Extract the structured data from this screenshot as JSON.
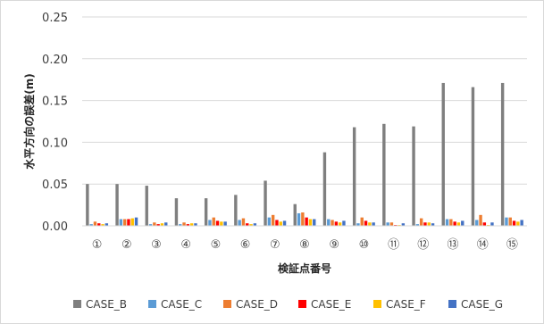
{
  "chart_data": {
    "type": "bar",
    "title": "",
    "xlabel": "検証点番号",
    "ylabel": "水平方向の誤差(m)",
    "ylim": [
      0,
      0.25
    ],
    "yticks": [
      "0.00",
      "0.05",
      "0.10",
      "0.15",
      "0.20",
      "0.25"
    ],
    "grid": true,
    "legend_position": "bottom",
    "categories": [
      "①",
      "②",
      "③",
      "④",
      "⑤",
      "⑥",
      "⑦",
      "⑧",
      "⑨",
      "⑩",
      "⑪",
      "⑫",
      "⑬",
      "⑭",
      "⑮"
    ],
    "series": [
      {
        "name": "CASE_B",
        "color": "#7f7f7f",
        "values": [
          0.05,
          0.05,
          0.048,
          0.033,
          0.033,
          0.037,
          0.054,
          0.026,
          0.088,
          0.118,
          0.122,
          0.119,
          0.171,
          0.166,
          0.171
        ]
      },
      {
        "name": "CASE_C",
        "color": "#5b9bd5",
        "values": [
          0.002,
          0.008,
          0.002,
          0.002,
          0.007,
          0.007,
          0.01,
          0.015,
          0.008,
          0.003,
          0.004,
          0.002,
          0.008,
          0.007,
          0.01
        ]
      },
      {
        "name": "CASE_D",
        "color": "#ed7d31",
        "values": [
          0.005,
          0.008,
          0.004,
          0.004,
          0.01,
          0.009,
          0.013,
          0.016,
          0.007,
          0.01,
          0.004,
          0.009,
          0.008,
          0.013,
          0.01
        ]
      },
      {
        "name": "CASE_E",
        "color": "#ff0000",
        "values": [
          0.003,
          0.008,
          0.002,
          0.002,
          0.006,
          0.003,
          0.007,
          0.01,
          0.005,
          0.006,
          0.001,
          0.004,
          0.005,
          0.004,
          0.006
        ]
      },
      {
        "name": "CASE_F",
        "color": "#ffc000",
        "values": [
          0.002,
          0.009,
          0.003,
          0.003,
          0.005,
          0.002,
          0.005,
          0.008,
          0.004,
          0.004,
          0.001,
          0.004,
          0.004,
          0.001,
          0.005
        ]
      },
      {
        "name": "CASE_G",
        "color": "#4472c4",
        "values": [
          0.003,
          0.01,
          0.004,
          0.003,
          0.005,
          0.003,
          0.006,
          0.008,
          0.006,
          0.004,
          0.003,
          0.003,
          0.006,
          0.004,
          0.007
        ]
      }
    ]
  }
}
